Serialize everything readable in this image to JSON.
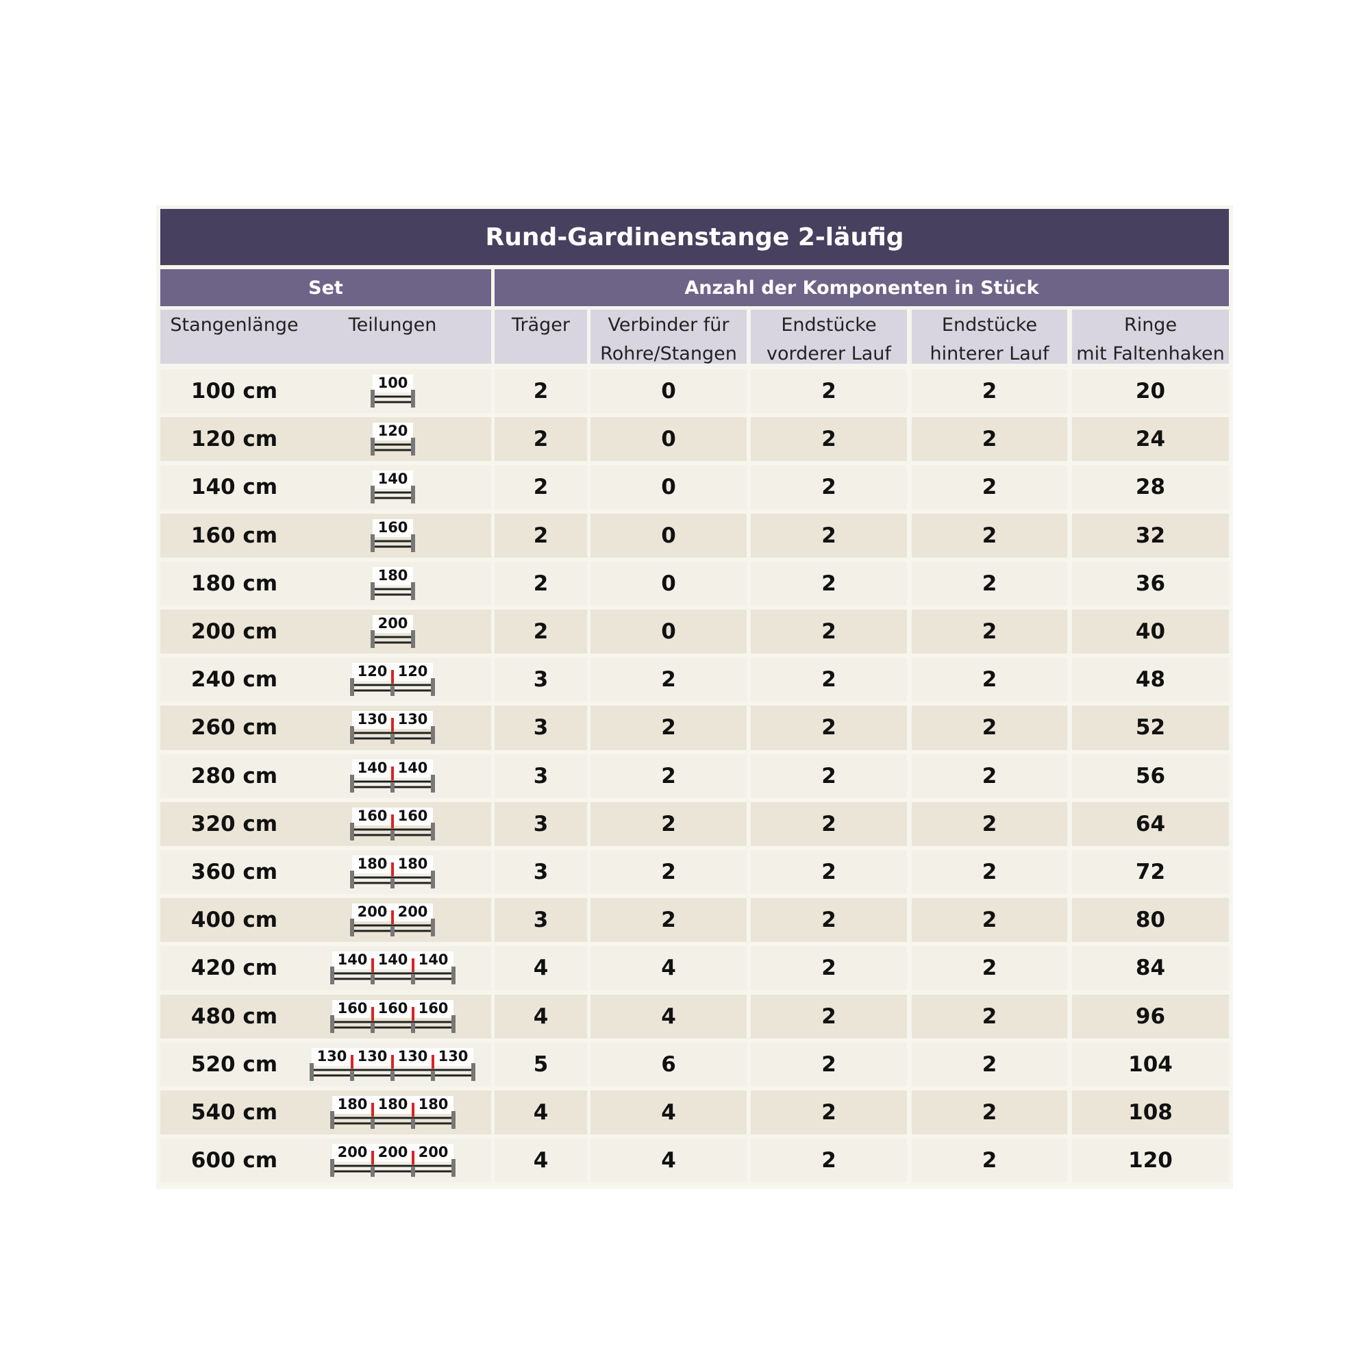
{
  "header": {
    "title": "Rund-Gardinenstange 2-läufig"
  },
  "table": {
    "groups": [
      "Set",
      "Anzahl der Komponenten in Stück"
    ],
    "columns": [
      "Stangenlänge",
      "Teilungen",
      "Träger",
      "Verbinder für\nRohre/Stangen",
      "Endstücke\nvorderer Lauf",
      "Endstücke\nhinterer Lauf",
      "Ringe\nmit Faltenhaken"
    ],
    "rows": [
      [
        "100 cm",
        [
          100
        ],
        2,
        0,
        2,
        2,
        20
      ],
      [
        "120 cm",
        [
          120
        ],
        2,
        0,
        2,
        2,
        24
      ],
      [
        "140 cm",
        [
          140
        ],
        2,
        0,
        2,
        2,
        28
      ],
      [
        "160 cm",
        [
          160
        ],
        2,
        0,
        2,
        2,
        32
      ],
      [
        "180 cm",
        [
          180
        ],
        2,
        0,
        2,
        2,
        36
      ],
      [
        "200 cm",
        [
          200
        ],
        2,
        0,
        2,
        2,
        40
      ],
      [
        "240 cm",
        [
          120,
          120
        ],
        3,
        2,
        2,
        2,
        48
      ],
      [
        "260 cm",
        [
          130,
          130
        ],
        3,
        2,
        2,
        2,
        52
      ],
      [
        "280 cm",
        [
          140,
          140
        ],
        3,
        2,
        2,
        2,
        56
      ],
      [
        "320 cm",
        [
          160,
          160
        ],
        3,
        2,
        2,
        2,
        64
      ],
      [
        "360 cm",
        [
          180,
          180
        ],
        3,
        2,
        2,
        2,
        72
      ],
      [
        "400 cm",
        [
          200,
          200
        ],
        3,
        2,
        2,
        2,
        80
      ],
      [
        "420 cm",
        [
          140,
          140,
          140
        ],
        4,
        4,
        2,
        2,
        84
      ],
      [
        "480 cm",
        [
          160,
          160,
          160
        ],
        4,
        4,
        2,
        2,
        96
      ],
      [
        "520 cm",
        [
          130,
          130,
          130,
          130
        ],
        5,
        6,
        2,
        2,
        104
      ],
      [
        "540 cm",
        [
          180,
          180,
          180
        ],
        4,
        4,
        2,
        2,
        108
      ],
      [
        "600 cm",
        [
          200,
          200,
          200
        ],
        4,
        4,
        2,
        2,
        120
      ]
    ]
  }
}
